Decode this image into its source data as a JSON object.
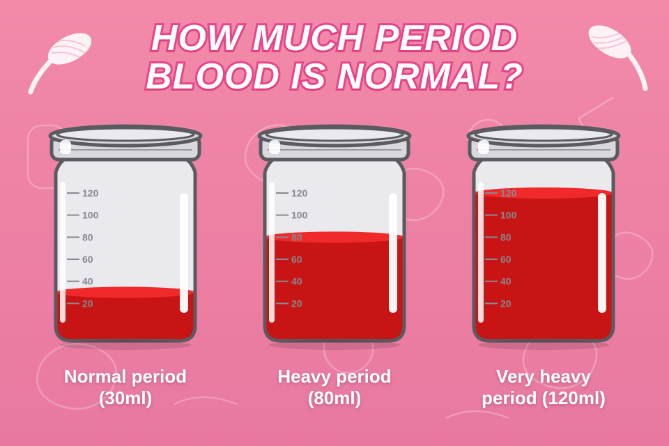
{
  "title_line1": "HOW MUCH PERIOD",
  "title_line2": "BLOOD IS NORMAL?",
  "title_color": "#ffffff",
  "title_stroke": "#e8448a",
  "title_fontsize": 52,
  "background_gradient_top": "#f28aa8",
  "background_gradient_bottom": "#e878a0",
  "pattern_stroke": "#ffffff",
  "pattern_opacity": 0.25,
  "jar": {
    "outline_color": "#5a5a60",
    "glass_fill": "#e9e9ee",
    "glass_highlight": "#ffffff",
    "lid_fill": "#d8d8de",
    "lid_stroke": "#5a5a60",
    "scale_max": 120,
    "scale_min": 20,
    "scale_step": 20,
    "scale_ticks": [
      20,
      40,
      60,
      80,
      100,
      120
    ],
    "scale_text_color": "#888890",
    "scale_fontsize": 14,
    "liquid_top_color": "#f02a2a",
    "liquid_body_color": "#c81414"
  },
  "jars": [
    {
      "label_line1": "Normal period",
      "label_line2": "(30ml)",
      "fill_ml": 30
    },
    {
      "label_line1": "Heavy period",
      "label_line2": "(80ml)",
      "fill_ml": 80
    },
    {
      "label_line1": "Very heavy",
      "label_line2": "period (120ml)",
      "fill_ml": 120
    }
  ],
  "caption_color": "#ffffff",
  "caption_fontsize": 26,
  "tampon_color": "#ffffff"
}
